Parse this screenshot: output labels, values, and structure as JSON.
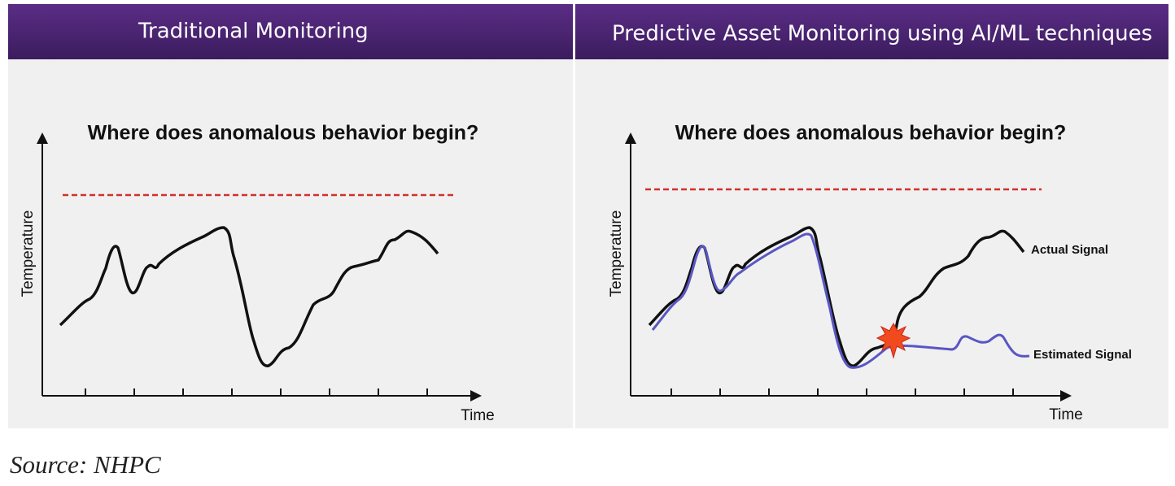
{
  "panels": [
    {
      "header": "Traditional Monitoring",
      "question": "Where does anomalous behavior begin?",
      "y_label": "Temperature",
      "x_label": "Time"
    },
    {
      "header": "Predictive Asset Monitoring using AI/ML techniques",
      "question": "Where does anomalous behavior begin?",
      "y_label": "Temperature",
      "x_label": "Time",
      "actual_label": "Actual Signal",
      "estimated_label": "Estimated Signal"
    }
  ],
  "source": "Source: NHPC"
}
